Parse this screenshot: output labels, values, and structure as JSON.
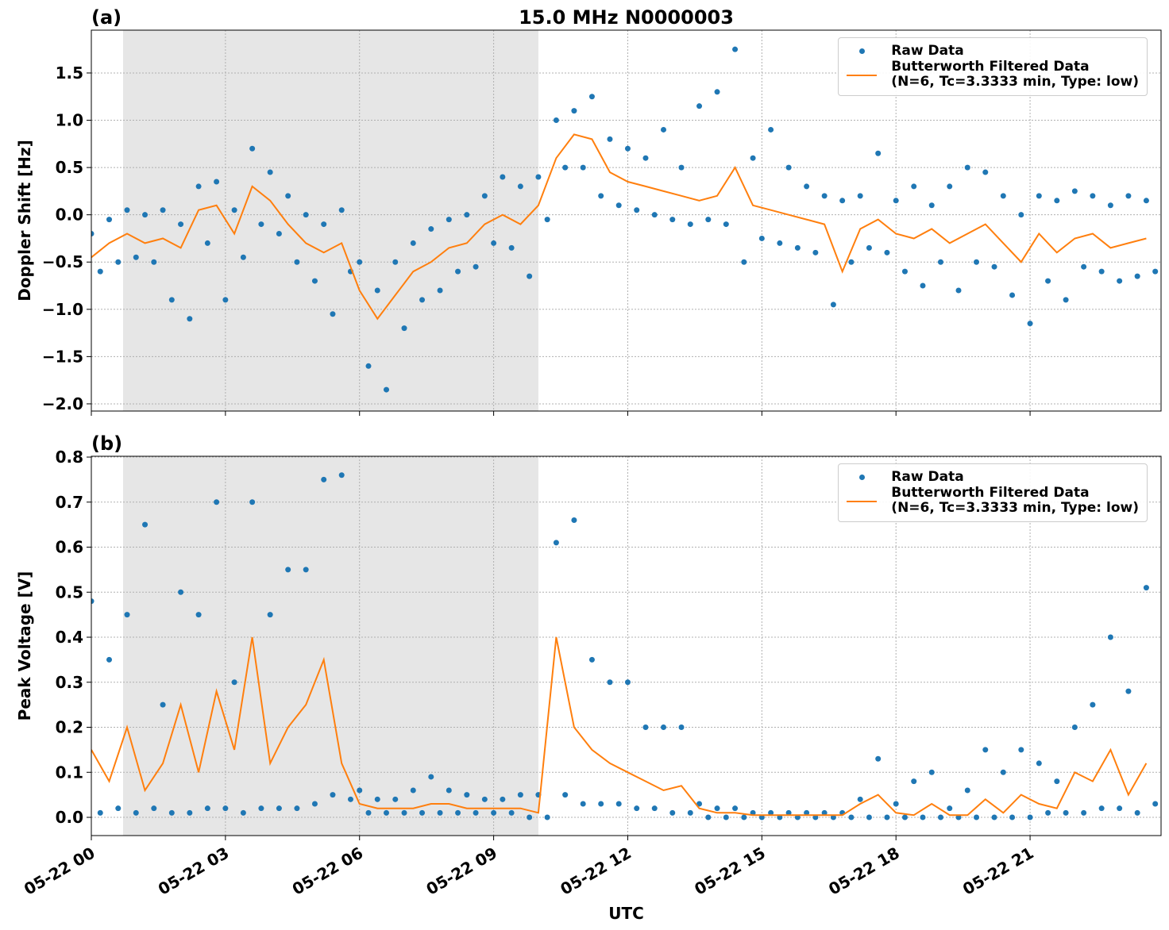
{
  "chart_data": [
    {
      "type": "scatter",
      "title": "15.0 MHz N0000003",
      "panel_label": "(a)",
      "y_label": "Doppler Shift [Hz]",
      "xlim": [
        0,
        23.93
      ],
      "ylim": [
        -2.076,
        1.953
      ],
      "grid": true,
      "legend": "upper right",
      "shaded_span": [
        0.71,
        10.0
      ],
      "xticks": [
        0,
        3,
        6,
        9,
        12,
        15,
        18,
        21
      ],
      "yticks": [
        {
          "value": -2.0,
          "label": "−2.0"
        },
        {
          "value": -1.5,
          "label": "−1.5"
        },
        {
          "value": -1.0,
          "label": "−1.0"
        },
        {
          "value": -0.5,
          "label": "−0.5"
        },
        {
          "value": 0.0,
          "label": "0.0"
        },
        {
          "value": 0.5,
          "label": "0.5"
        },
        {
          "value": 1.0,
          "label": "1.0"
        },
        {
          "value": 1.5,
          "label": "1.5"
        }
      ],
      "series": [
        {
          "name": "Raw Data",
          "color": "#1f77b4",
          "mode": "markers",
          "x": [
            0,
            0.2,
            0.4,
            0.6,
            0.8,
            1,
            1.2,
            1.4,
            1.6,
            1.8,
            2,
            2.2,
            2.4,
            2.6,
            2.8,
            3,
            3.2,
            3.4,
            3.6,
            3.8,
            4,
            4.2,
            4.4,
            4.6,
            4.8,
            5,
            5.2,
            5.4,
            5.6,
            5.8,
            6,
            6.2,
            6.4,
            6.6,
            6.8,
            7,
            7.2,
            7.4,
            7.6,
            7.8,
            8,
            8.2,
            8.4,
            8.6,
            8.8,
            9,
            9.2,
            9.4,
            9.6,
            9.8,
            10,
            10.2,
            10.4,
            10.6,
            10.8,
            11,
            11.2,
            11.4,
            11.6,
            11.8,
            12,
            12.2,
            12.4,
            12.6,
            12.8,
            13,
            13.2,
            13.4,
            13.6,
            13.8,
            14,
            14.2,
            14.4,
            14.6,
            14.8,
            15,
            15.2,
            15.4,
            15.6,
            15.8,
            16,
            16.2,
            16.4,
            16.6,
            16.8,
            17,
            17.2,
            17.4,
            17.6,
            17.8,
            18,
            18.2,
            18.4,
            18.6,
            18.8,
            19,
            19.2,
            19.4,
            19.6,
            19.8,
            20,
            20.2,
            20.4,
            20.6,
            20.8,
            21,
            21.2,
            21.4,
            21.6,
            21.8,
            22,
            22.2,
            22.4,
            22.6,
            22.8,
            23,
            23.2,
            23.4,
            23.6,
            23.8
          ],
          "values": [
            -0.2,
            -0.6,
            -0.05,
            -0.5,
            0.05,
            -0.45,
            0.0,
            -0.5,
            0.05,
            -0.9,
            -0.1,
            -1.1,
            0.3,
            -0.3,
            0.35,
            -0.9,
            0.05,
            -0.45,
            0.7,
            -0.1,
            0.45,
            -0.2,
            0.2,
            -0.5,
            0.0,
            -0.7,
            -0.1,
            -1.05,
            0.05,
            -0.6,
            -0.5,
            -1.6,
            -0.8,
            -1.85,
            -0.5,
            -1.2,
            -0.3,
            -0.9,
            -0.15,
            -0.8,
            -0.05,
            -0.6,
            0.0,
            -0.55,
            0.2,
            -0.3,
            0.4,
            -0.35,
            0.3,
            -0.65,
            0.4,
            -0.05,
            1.0,
            0.5,
            1.1,
            0.5,
            1.25,
            0.2,
            0.8,
            0.1,
            0.7,
            0.05,
            0.6,
            0.0,
            0.9,
            -0.05,
            0.5,
            -0.1,
            1.15,
            -0.05,
            1.3,
            -0.1,
            1.75,
            -0.5,
            0.6,
            -0.25,
            0.9,
            -0.3,
            0.5,
            -0.35,
            0.3,
            -0.4,
            0.2,
            -0.95,
            0.15,
            -0.5,
            0.2,
            -0.35,
            0.65,
            -0.4,
            0.15,
            -0.6,
            0.3,
            -0.75,
            0.1,
            -0.5,
            0.3,
            -0.8,
            0.5,
            -0.5,
            0.45,
            -0.55,
            0.2,
            -0.85,
            0.0,
            -1.15,
            0.2,
            -0.7,
            0.15,
            -0.9,
            0.25,
            -0.55,
            0.2,
            -0.6,
            0.1,
            -0.7,
            0.2,
            -0.65,
            0.15,
            -0.6
          ]
        },
        {
          "name": "Butterworth Filtered Data\n(N=6, Tc=3.3333 min, Type: low)",
          "color": "#ff7f0e",
          "mode": "line",
          "x": [
            0,
            0.4,
            0.8,
            1.2,
            1.6,
            2,
            2.4,
            2.8,
            3.2,
            3.6,
            4,
            4.4,
            4.8,
            5.2,
            5.6,
            6,
            6.4,
            6.8,
            7.2,
            7.6,
            8,
            8.4,
            8.8,
            9.2,
            9.6,
            10,
            10.4,
            10.8,
            11.2,
            11.6,
            12,
            12.4,
            12.8,
            13.2,
            13.6,
            14,
            14.4,
            14.8,
            15.2,
            15.6,
            16,
            16.4,
            16.8,
            17.2,
            17.6,
            18,
            18.4,
            18.8,
            19.2,
            19.6,
            20,
            20.4,
            20.8,
            21.2,
            21.6,
            22,
            22.4,
            22.8,
            23.2,
            23.6
          ],
          "values": [
            -0.45,
            -0.3,
            -0.2,
            -0.3,
            -0.25,
            -0.35,
            0.05,
            0.1,
            -0.2,
            0.3,
            0.15,
            -0.1,
            -0.3,
            -0.4,
            -0.3,
            -0.8,
            -1.1,
            -0.85,
            -0.6,
            -0.5,
            -0.35,
            -0.3,
            -0.1,
            0.0,
            -0.1,
            0.1,
            0.6,
            0.85,
            0.8,
            0.45,
            0.35,
            0.3,
            0.25,
            0.2,
            0.15,
            0.2,
            0.5,
            0.1,
            0.05,
            0.0,
            -0.05,
            -0.1,
            -0.6,
            -0.15,
            -0.05,
            -0.2,
            -0.25,
            -0.15,
            -0.3,
            -0.2,
            -0.1,
            -0.3,
            -0.5,
            -0.2,
            -0.4,
            -0.25,
            -0.2,
            -0.35,
            -0.3,
            -0.25
          ]
        }
      ]
    },
    {
      "type": "scatter",
      "panel_label": "(b)",
      "y_label": "Peak Voltage [V]",
      "x_label": "UTC",
      "xlim": [
        0,
        23.93
      ],
      "ylim": [
        -0.0405,
        0.8018
      ],
      "grid": true,
      "legend": "upper right",
      "shaded_span": [
        0.71,
        10.0
      ],
      "xticks": [
        {
          "value": 0,
          "label": "05-22 00"
        },
        {
          "value": 3,
          "label": "05-22 03"
        },
        {
          "value": 6,
          "label": "05-22 06"
        },
        {
          "value": 9,
          "label": "05-22 09"
        },
        {
          "value": 12,
          "label": "05-22 12"
        },
        {
          "value": 15,
          "label": "05-22 15"
        },
        {
          "value": 18,
          "label": "05-22 18"
        },
        {
          "value": 21,
          "label": "05-22 21"
        }
      ],
      "yticks": [
        {
          "value": 0.0,
          "label": "0.0"
        },
        {
          "value": 0.1,
          "label": "0.1"
        },
        {
          "value": 0.2,
          "label": "0.2"
        },
        {
          "value": 0.3,
          "label": "0.3"
        },
        {
          "value": 0.4,
          "label": "0.4"
        },
        {
          "value": 0.5,
          "label": "0.5"
        },
        {
          "value": 0.6,
          "label": "0.6"
        },
        {
          "value": 0.7,
          "label": "0.7"
        },
        {
          "value": 0.8,
          "label": "0.8"
        }
      ],
      "series": [
        {
          "name": "Raw Data",
          "color": "#1f77b4",
          "mode": "markers",
          "x": [
            0,
            0.2,
            0.4,
            0.6,
            0.8,
            1,
            1.2,
            1.4,
            1.6,
            1.8,
            2,
            2.2,
            2.4,
            2.6,
            2.8,
            3,
            3.2,
            3.4,
            3.6,
            3.8,
            4,
            4.2,
            4.4,
            4.6,
            4.8,
            5,
            5.2,
            5.4,
            5.6,
            5.8,
            6,
            6.2,
            6.4,
            6.6,
            6.8,
            7,
            7.2,
            7.4,
            7.6,
            7.8,
            8,
            8.2,
            8.4,
            8.6,
            8.8,
            9,
            9.2,
            9.4,
            9.6,
            9.8,
            10,
            10.2,
            10.4,
            10.6,
            10.8,
            11,
            11.2,
            11.4,
            11.6,
            11.8,
            12,
            12.2,
            12.4,
            12.6,
            12.8,
            13,
            13.2,
            13.4,
            13.6,
            13.8,
            14,
            14.2,
            14.4,
            14.6,
            14.8,
            15,
            15.2,
            15.4,
            15.6,
            15.8,
            16,
            16.2,
            16.4,
            16.6,
            16.8,
            17,
            17.2,
            17.4,
            17.6,
            17.8,
            18,
            18.2,
            18.4,
            18.6,
            18.8,
            19,
            19.2,
            19.4,
            19.6,
            19.8,
            20,
            20.2,
            20.4,
            20.6,
            20.8,
            21,
            21.2,
            21.4,
            21.6,
            21.8,
            22,
            22.2,
            22.4,
            22.6,
            22.8,
            23,
            23.2,
            23.4,
            23.6,
            23.8
          ],
          "values": [
            0.48,
            0.01,
            0.35,
            0.02,
            0.45,
            0.01,
            0.65,
            0.02,
            0.25,
            0.01,
            0.5,
            0.01,
            0.45,
            0.02,
            0.7,
            0.02,
            0.3,
            0.01,
            0.7,
            0.02,
            0.45,
            0.02,
            0.55,
            0.02,
            0.55,
            0.03,
            0.75,
            0.05,
            0.76,
            0.04,
            0.06,
            0.01,
            0.04,
            0.01,
            0.04,
            0.01,
            0.06,
            0.01,
            0.09,
            0.01,
            0.06,
            0.01,
            0.05,
            0.01,
            0.04,
            0.01,
            0.04,
            0.01,
            0.05,
            0.0,
            0.05,
            0.0,
            0.61,
            0.05,
            0.66,
            0.03,
            0.35,
            0.03,
            0.3,
            0.03,
            0.3,
            0.02,
            0.2,
            0.02,
            0.2,
            0.01,
            0.2,
            0.01,
            0.03,
            0.0,
            0.02,
            0.0,
            0.02,
            0.0,
            0.01,
            0.0,
            0.01,
            0.0,
            0.01,
            0.0,
            0.01,
            0.0,
            0.01,
            0.0,
            0.01,
            0.0,
            0.04,
            0.0,
            0.13,
            0.0,
            0.03,
            0.0,
            0.08,
            0.0,
            0.1,
            0.0,
            0.02,
            0.0,
            0.06,
            0.0,
            0.15,
            0.0,
            0.1,
            0.0,
            0.15,
            0.0,
            0.12,
            0.01,
            0.08,
            0.01,
            0.2,
            0.01,
            0.25,
            0.02,
            0.4,
            0.02,
            0.28,
            0.01,
            0.51,
            0.03
          ]
        },
        {
          "name": "Butterworth Filtered Data\n(N=6, Tc=3.3333 min, Type: low)",
          "color": "#ff7f0e",
          "mode": "line",
          "x": [
            0,
            0.4,
            0.8,
            1.2,
            1.6,
            2,
            2.4,
            2.8,
            3.2,
            3.6,
            4,
            4.4,
            4.8,
            5.2,
            5.6,
            6,
            6.4,
            6.8,
            7.2,
            7.6,
            8,
            8.4,
            8.8,
            9.2,
            9.6,
            10,
            10.4,
            10.8,
            11.2,
            11.6,
            12,
            12.4,
            12.8,
            13.2,
            13.6,
            14,
            14.4,
            14.8,
            15.2,
            15.6,
            16,
            16.4,
            16.8,
            17.2,
            17.6,
            18,
            18.4,
            18.8,
            19.2,
            19.6,
            20,
            20.4,
            20.8,
            21.2,
            21.6,
            22,
            22.4,
            22.8,
            23.2,
            23.6
          ],
          "values": [
            0.15,
            0.08,
            0.2,
            0.06,
            0.12,
            0.25,
            0.1,
            0.28,
            0.15,
            0.4,
            0.12,
            0.2,
            0.25,
            0.35,
            0.12,
            0.03,
            0.02,
            0.02,
            0.02,
            0.03,
            0.03,
            0.02,
            0.02,
            0.02,
            0.02,
            0.01,
            0.4,
            0.2,
            0.15,
            0.12,
            0.1,
            0.08,
            0.06,
            0.07,
            0.02,
            0.01,
            0.01,
            0.005,
            0.005,
            0.005,
            0.005,
            0.005,
            0.005,
            0.03,
            0.05,
            0.01,
            0.005,
            0.03,
            0.005,
            0.005,
            0.04,
            0.01,
            0.05,
            0.03,
            0.02,
            0.1,
            0.08,
            0.15,
            0.05,
            0.12
          ]
        }
      ]
    }
  ]
}
